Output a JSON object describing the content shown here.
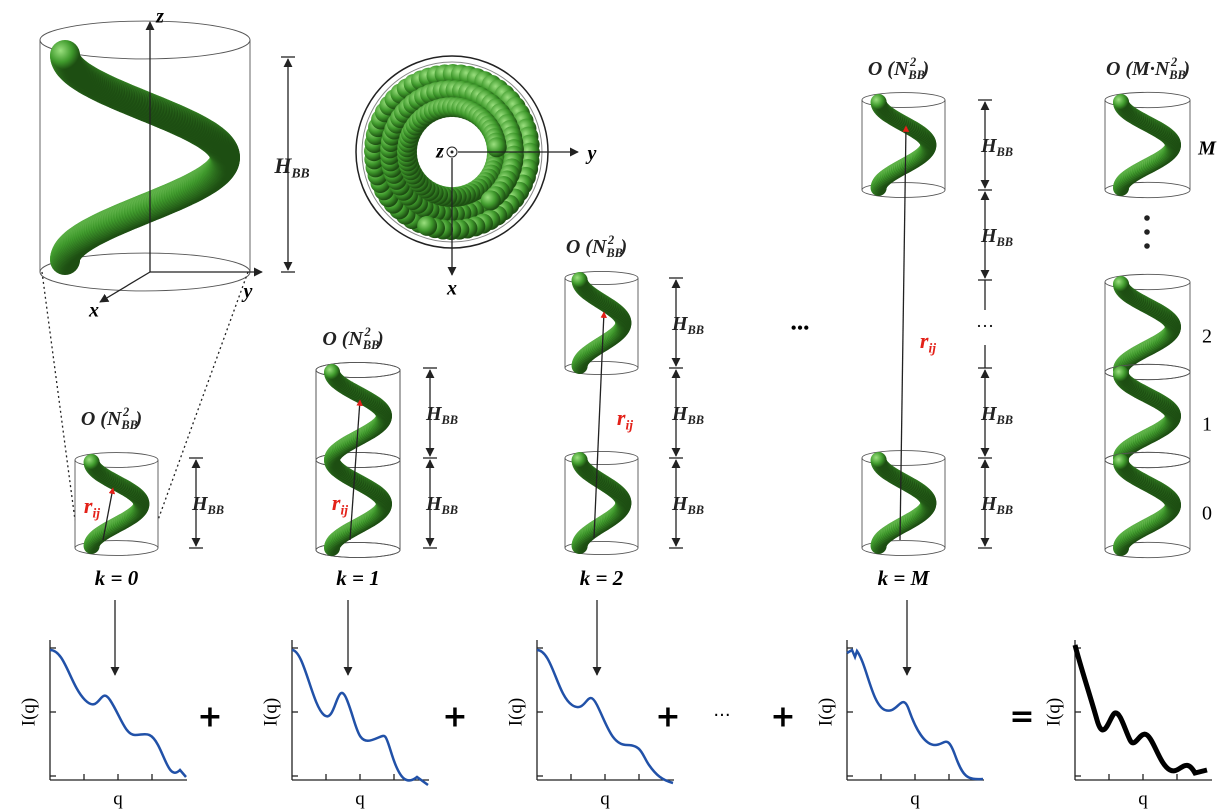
{
  "perspective": {
    "z": "z",
    "y": "y",
    "x": "x",
    "height": {
      "main": "H",
      "sub": "BB"
    }
  },
  "top_view": {
    "z": "z",
    "y": "y",
    "x": "x"
  },
  "panels": [
    {
      "complexity": {
        "main": "O (N",
        "sub": "BB",
        "sup": "2",
        "close": ")"
      },
      "distance": {
        "main": "r",
        "sub": "ij"
      },
      "heights": [
        {
          "main": "H",
          "sub": "BB"
        }
      ],
      "k": "k = 0"
    },
    {
      "complexity": {
        "main": "O (N",
        "sub": "BB",
        "sup": "2",
        "close": ")"
      },
      "distance": {
        "main": "r",
        "sub": "ij"
      },
      "heights": [
        {
          "main": "H",
          "sub": "BB"
        },
        {
          "main": "H",
          "sub": "BB"
        }
      ],
      "k": "k = 1"
    },
    {
      "complexity": {
        "main": "O (N",
        "sub": "BB",
        "sup": "2",
        "close": ")"
      },
      "distance": {
        "main": "r",
        "sub": "ij"
      },
      "heights": [
        {
          "main": "H",
          "sub": "BB"
        },
        {
          "main": "H",
          "sub": "BB"
        },
        {
          "main": "H",
          "sub": "BB"
        }
      ],
      "k": "k = 2"
    },
    {
      "complexity": {
        "main": "O (N",
        "sub": "BB",
        "sup": "2",
        "close": ")"
      },
      "distance": {
        "main": "r",
        "sub": "ij"
      },
      "heights": [
        {
          "main": "H",
          "sub": "BB"
        },
        {
          "main": "H",
          "sub": "BB"
        },
        {
          "main": "H",
          "sub": "BB"
        },
        {
          "main": "H",
          "sub": "BB"
        }
      ],
      "gap": "···",
      "k": "k = M"
    }
  ],
  "ellipsis": "•••",
  "final": {
    "complexity": {
      "main": "O (M·N",
      "sub": "BB",
      "sup": "2",
      "close": ")"
    },
    "index_labels": [
      "M",
      "2",
      "1",
      "0"
    ]
  },
  "plots": [
    {
      "y_label": "I(q)",
      "x_label": "q"
    },
    {
      "y_label": "I(q)",
      "x_label": "q"
    },
    {
      "y_label": "I(q)",
      "x_label": "q"
    },
    {
      "y_label": "I(q)",
      "x_label": "q"
    },
    {
      "y_label": "I(q)",
      "x_label": "q"
    }
  ],
  "operators": [
    "+",
    "+",
    "+",
    "···",
    "+",
    "="
  ]
}
